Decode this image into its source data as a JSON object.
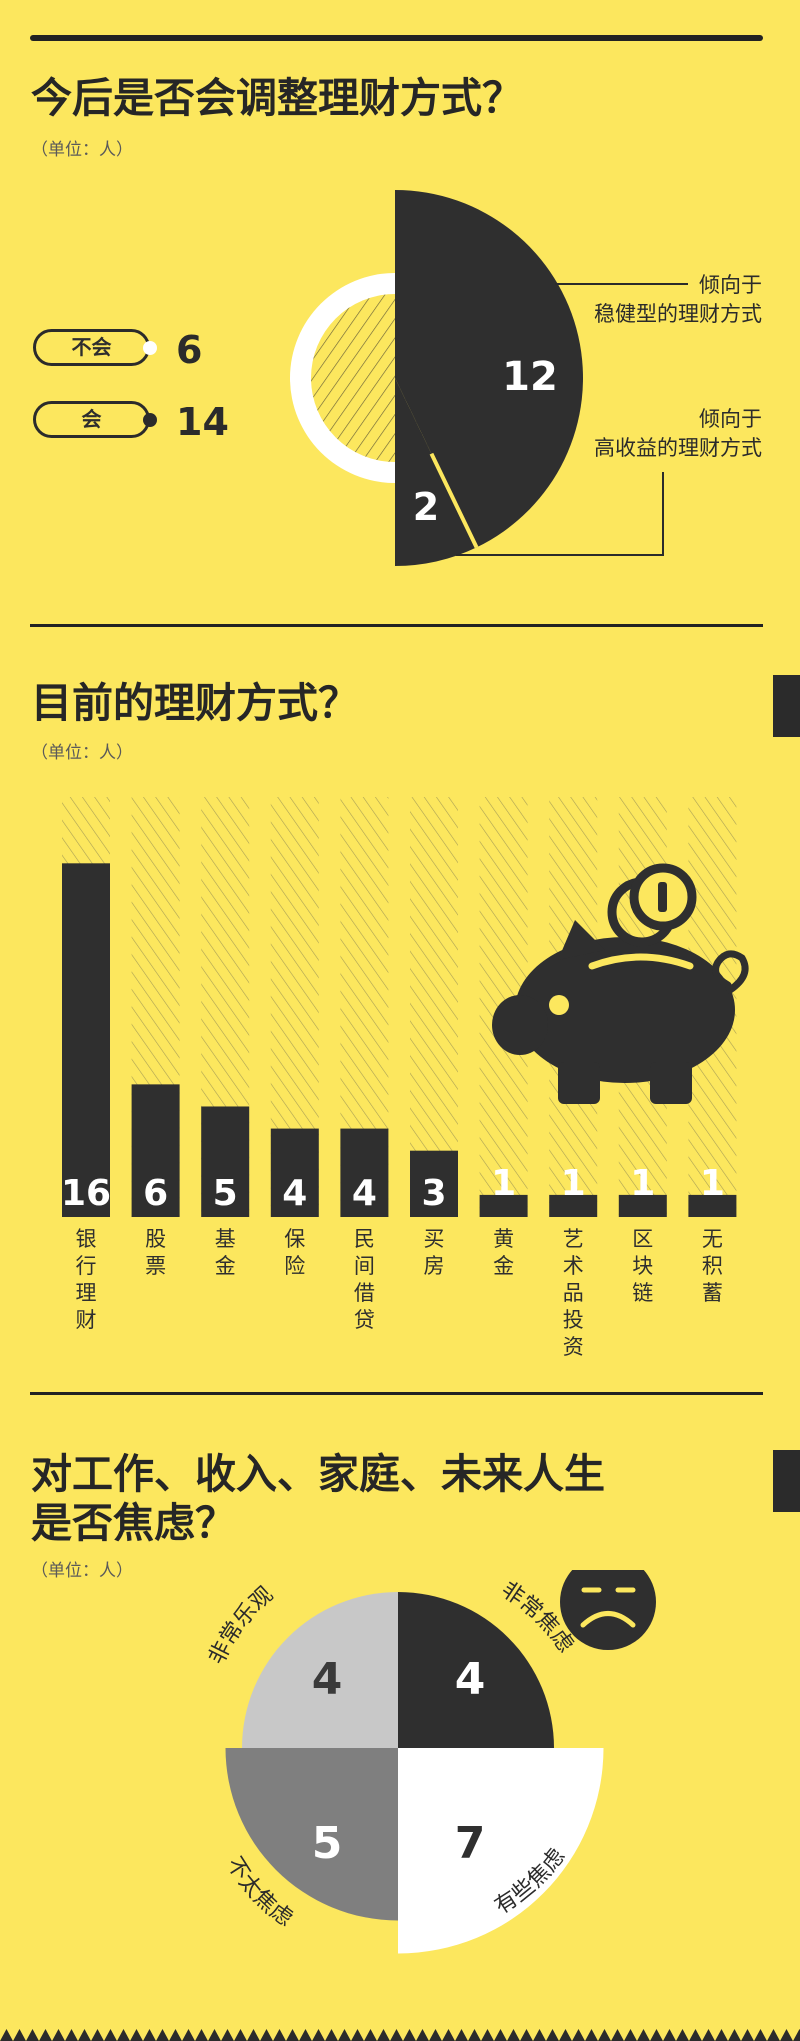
{
  "colors": {
    "background": "#FCE75E",
    "dark": "#2f2f2f",
    "white": "#ffffff",
    "light_gray": "#c8c8c8",
    "mid_gray": "#7f7f7f"
  },
  "section1": {
    "title": "今后是否会调整理财方式？",
    "unit": "（单位：人）",
    "legend": [
      {
        "label": "不会",
        "value": "6"
      },
      {
        "label": "会",
        "value": "14"
      }
    ],
    "callouts": [
      "倾向于\n稳健型的理财方式",
      "倾向于\n高收益的理财方式"
    ]
  },
  "section2": {
    "title": "目前的理财方式？",
    "unit": "（单位：人）",
    "icon": "piggy-bank-icon"
  },
  "section3": {
    "title_line1": "对工作、收入、家庭、未来人生",
    "title_line2": "是否焦虑？",
    "unit": "（单位：人）",
    "icon": "sad-face-icon"
  },
  "chart_data": [
    {
      "type": "pie",
      "title": "今后是否会调整理财方式？",
      "slices": [
        {
          "label": "不会",
          "value": 6
        },
        {
          "label": "会",
          "value": 14,
          "breakdown": [
            {
              "label": "倾向于稳健型的理财方式",
              "value": 12
            },
            {
              "label": "倾向于高收益的理财方式",
              "value": 2
            }
          ]
        }
      ]
    },
    {
      "type": "bar",
      "title": "目前的理财方式？",
      "categories": [
        "银行理财",
        "股票",
        "基金",
        "保险",
        "民间借贷",
        "买房",
        "黄金",
        "艺术品投资",
        "区块链",
        "无积蓄"
      ],
      "values": [
        16,
        6,
        5,
        4,
        4,
        3,
        1,
        1,
        1,
        1
      ],
      "ylim": [
        0,
        19
      ]
    },
    {
      "type": "pie",
      "title": "对工作、收入、家庭、未来人生是否焦虑？",
      "slices": [
        {
          "label": "非常焦虑",
          "value": 4
        },
        {
          "label": "有些焦虑",
          "value": 7
        },
        {
          "label": "不太焦虑",
          "value": 5
        },
        {
          "label": "非常乐观",
          "value": 4
        }
      ]
    }
  ]
}
